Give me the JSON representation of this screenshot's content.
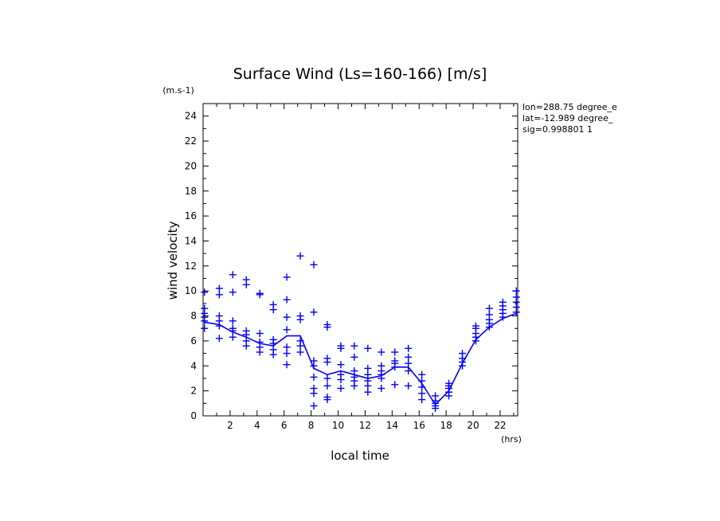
{
  "chart_data": {
    "type": "scatter",
    "title": "Surface Wind  (Ls=160-166) [m/s]",
    "xlabel": "local time",
    "ylabel": "wind velocity",
    "x_unit": "(hrs)",
    "y_unit": "(m.s-1)",
    "xlim": [
      0,
      23.3
    ],
    "ylim": [
      0,
      25
    ],
    "xticks": [
      2,
      4,
      6,
      8,
      10,
      12,
      14,
      16,
      18,
      20,
      22
    ],
    "yticks": [
      0,
      2,
      4,
      6,
      8,
      10,
      12,
      14,
      16,
      18,
      20,
      22,
      24
    ],
    "grid": false,
    "info_lines": [
      "lon=288.75 degree_e",
      "lat=-12.989 degree_",
      "sig=0.998801 1"
    ],
    "color": "#0000ff",
    "series": [
      {
        "type": "scatter",
        "marker": "plus",
        "points": [
          [
            0.1,
            7.6
          ],
          [
            0.1,
            7.9
          ],
          [
            0.1,
            8.2
          ],
          [
            0.1,
            8.6
          ],
          [
            0.1,
            9.9
          ],
          [
            0.1,
            7.0
          ],
          [
            1.2,
            7.2
          ],
          [
            1.2,
            7.6
          ],
          [
            1.2,
            8.0
          ],
          [
            1.2,
            9.7
          ],
          [
            1.2,
            10.2
          ],
          [
            1.2,
            6.2
          ],
          [
            2.2,
            6.3
          ],
          [
            2.2,
            6.8
          ],
          [
            2.2,
            7.0
          ],
          [
            2.2,
            7.6
          ],
          [
            2.2,
            9.9
          ],
          [
            2.2,
            11.3
          ],
          [
            3.2,
            5.6
          ],
          [
            3.2,
            6.0
          ],
          [
            3.2,
            6.5
          ],
          [
            3.2,
            6.8
          ],
          [
            3.2,
            10.5
          ],
          [
            3.2,
            10.9
          ],
          [
            4.2,
            5.1
          ],
          [
            4.2,
            5.5
          ],
          [
            4.2,
            5.9
          ],
          [
            4.2,
            6.6
          ],
          [
            4.2,
            9.8
          ],
          [
            4.2,
            9.7
          ],
          [
            5.2,
            4.9
          ],
          [
            5.2,
            5.3
          ],
          [
            5.2,
            5.8
          ],
          [
            5.2,
            6.1
          ],
          [
            5.2,
            8.5
          ],
          [
            5.2,
            8.9
          ],
          [
            6.2,
            4.1
          ],
          [
            6.2,
            5.0
          ],
          [
            6.2,
            5.5
          ],
          [
            6.2,
            6.9
          ],
          [
            6.2,
            7.9
          ],
          [
            6.2,
            9.3
          ],
          [
            6.2,
            11.1
          ],
          [
            7.2,
            5.1
          ],
          [
            7.2,
            5.6
          ],
          [
            7.2,
            6.0
          ],
          [
            7.2,
            7.7
          ],
          [
            7.2,
            8.0
          ],
          [
            7.2,
            12.8
          ],
          [
            8.2,
            0.8
          ],
          [
            8.2,
            1.8
          ],
          [
            8.2,
            2.2
          ],
          [
            8.2,
            3.1
          ],
          [
            8.2,
            4.0
          ],
          [
            8.2,
            4.4
          ],
          [
            8.2,
            8.3
          ],
          [
            8.2,
            12.1
          ],
          [
            9.2,
            1.3
          ],
          [
            9.2,
            1.5
          ],
          [
            9.2,
            2.4
          ],
          [
            9.2,
            3.0
          ],
          [
            9.2,
            4.3
          ],
          [
            9.2,
            4.6
          ],
          [
            9.2,
            7.1
          ],
          [
            9.2,
            7.3
          ],
          [
            10.2,
            2.2
          ],
          [
            10.2,
            2.9
          ],
          [
            10.2,
            3.3
          ],
          [
            10.2,
            4.1
          ],
          [
            10.2,
            5.4
          ],
          [
            10.2,
            5.6
          ],
          [
            11.2,
            2.4
          ],
          [
            11.2,
            2.8
          ],
          [
            11.2,
            3.1
          ],
          [
            11.2,
            3.6
          ],
          [
            11.2,
            4.7
          ],
          [
            11.2,
            5.6
          ],
          [
            12.2,
            1.9
          ],
          [
            12.2,
            2.4
          ],
          [
            12.2,
            2.8
          ],
          [
            12.2,
            3.3
          ],
          [
            12.2,
            3.8
          ],
          [
            12.2,
            5.4
          ],
          [
            13.2,
            2.2
          ],
          [
            13.2,
            3.0
          ],
          [
            13.2,
            3.3
          ],
          [
            13.2,
            3.6
          ],
          [
            13.2,
            4.0
          ],
          [
            13.2,
            5.1
          ],
          [
            14.2,
            2.5
          ],
          [
            14.2,
            3.9
          ],
          [
            14.2,
            4.2
          ],
          [
            14.2,
            4.4
          ],
          [
            14.2,
            5.1
          ],
          [
            15.2,
            2.4
          ],
          [
            15.2,
            3.6
          ],
          [
            15.2,
            4.2
          ],
          [
            15.2,
            4.7
          ],
          [
            15.2,
            5.4
          ],
          [
            16.2,
            1.3
          ],
          [
            16.2,
            1.8
          ],
          [
            16.2,
            2.3
          ],
          [
            16.2,
            2.8
          ],
          [
            16.2,
            3.3
          ],
          [
            17.2,
            0.6
          ],
          [
            17.2,
            0.8
          ],
          [
            17.2,
            1.0
          ],
          [
            17.2,
            1.2
          ],
          [
            17.2,
            1.6
          ],
          [
            18.2,
            1.6
          ],
          [
            18.2,
            1.9
          ],
          [
            18.2,
            2.2
          ],
          [
            18.2,
            2.4
          ],
          [
            18.2,
            2.6
          ],
          [
            19.2,
            4.0
          ],
          [
            19.2,
            4.3
          ],
          [
            19.2,
            4.6
          ],
          [
            19.2,
            5.0
          ],
          [
            20.2,
            6.0
          ],
          [
            20.2,
            6.3
          ],
          [
            20.2,
            6.6
          ],
          [
            20.2,
            7.0
          ],
          [
            20.2,
            7.2
          ],
          [
            21.2,
            7.1
          ],
          [
            21.2,
            7.4
          ],
          [
            21.2,
            7.7
          ],
          [
            21.2,
            8.1
          ],
          [
            21.2,
            8.6
          ],
          [
            22.2,
            7.9
          ],
          [
            22.2,
            8.2
          ],
          [
            22.2,
            8.5
          ],
          [
            22.2,
            8.8
          ],
          [
            22.2,
            9.1
          ],
          [
            23.2,
            8.3
          ],
          [
            23.2,
            8.7
          ],
          [
            23.2,
            9.1
          ],
          [
            23.2,
            9.5
          ],
          [
            23.2,
            10.0
          ]
        ]
      },
      {
        "type": "line",
        "points": [
          [
            0.1,
            7.5
          ],
          [
            1.2,
            7.3
          ],
          [
            2.2,
            6.7
          ],
          [
            3.2,
            6.3
          ],
          [
            4.2,
            5.8
          ],
          [
            5.2,
            5.6
          ],
          [
            6.2,
            6.4
          ],
          [
            7.2,
            6.4
          ],
          [
            8.2,
            3.8
          ],
          [
            9.2,
            3.3
          ],
          [
            10.2,
            3.6
          ],
          [
            11.2,
            3.3
          ],
          [
            12.2,
            3.0
          ],
          [
            13.2,
            3.2
          ],
          [
            14.2,
            3.9
          ],
          [
            15.2,
            3.9
          ],
          [
            16.2,
            2.6
          ],
          [
            17.2,
            0.9
          ],
          [
            18.2,
            2.0
          ],
          [
            19.2,
            4.2
          ],
          [
            20.2,
            6.1
          ],
          [
            21.2,
            7.1
          ],
          [
            22.2,
            7.8
          ],
          [
            23.2,
            8.2
          ]
        ]
      }
    ]
  }
}
